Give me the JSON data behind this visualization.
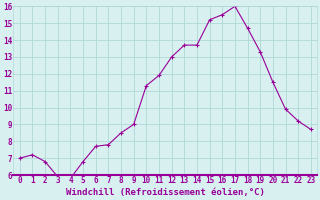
{
  "x": [
    0,
    1,
    2,
    3,
    4,
    5,
    6,
    7,
    8,
    9,
    10,
    11,
    12,
    13,
    14,
    15,
    16,
    17,
    18,
    19,
    20,
    21,
    22,
    23
  ],
  "y": [
    7.0,
    7.2,
    6.8,
    5.9,
    5.8,
    6.8,
    7.7,
    7.8,
    8.5,
    9.0,
    11.3,
    11.9,
    13.0,
    13.7,
    13.7,
    15.2,
    15.5,
    16.0,
    14.7,
    13.3,
    11.5,
    9.9,
    9.2,
    8.7
  ],
  "line_color": "#990099",
  "marker": "+",
  "marker_size": 3,
  "marker_linewidth": 0.8,
  "background_color": "#d8f0f0",
  "grid_color": "#b0d8d8",
  "xlabel": "Windchill (Refroidissement éolien,°C)",
  "xlabel_color": "#990099",
  "ylim": [
    6,
    16
  ],
  "yticks": [
    6,
    7,
    8,
    9,
    10,
    11,
    12,
    13,
    14,
    15,
    16
  ],
  "xticks": [
    0,
    1,
    2,
    3,
    4,
    5,
    6,
    7,
    8,
    9,
    10,
    11,
    12,
    13,
    14,
    15,
    16,
    17,
    18,
    19,
    20,
    21,
    22,
    23
  ],
  "tick_fontsize": 5.5,
  "xlabel_fontsize": 6.5,
  "line_width": 0.8,
  "separator_color": "#990099",
  "separator_linewidth": 1.5
}
